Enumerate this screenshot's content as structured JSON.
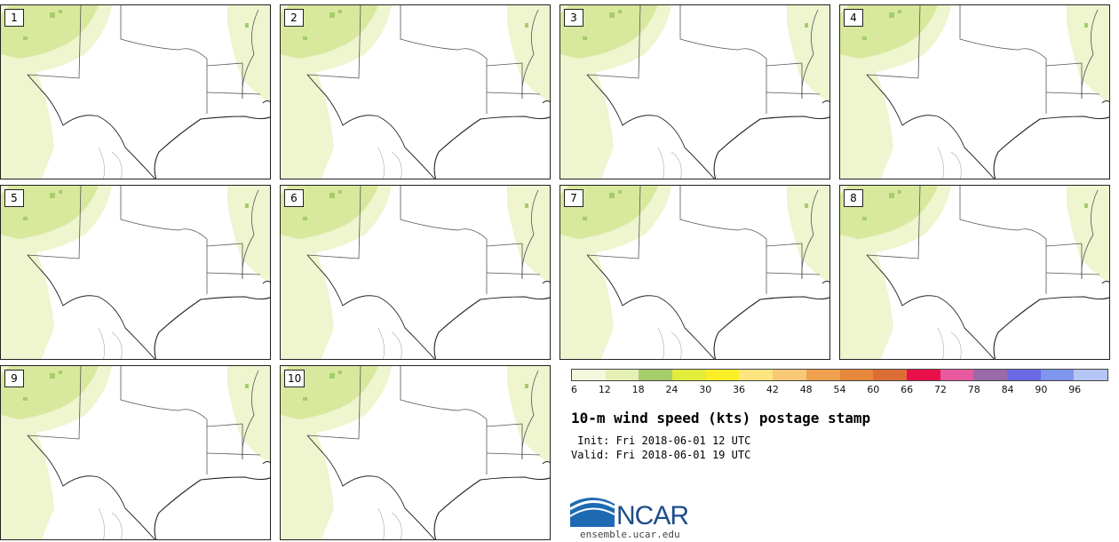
{
  "product": {
    "title": "10-m wind speed (kts) postage stamp",
    "init": " Init: Fri 2018-06-01 12 UTC",
    "valid": "Valid: Fri 2018-06-01 19 UTC",
    "logo_text": "NCAR",
    "site": "ensemble.ucar.edu"
  },
  "members": [
    "1",
    "2",
    "3",
    "4",
    "5",
    "6",
    "7",
    "8",
    "9",
    "10"
  ],
  "colorbar": {
    "ticks": [
      "6",
      "12",
      "18",
      "24",
      "30",
      "36",
      "42",
      "48",
      "54",
      "60",
      "66",
      "72",
      "78",
      "84",
      "90",
      "96"
    ],
    "colors": [
      "#f3f8dc",
      "#e3efb4",
      "#a7cc6a",
      "#e2ec3a",
      "#fcee26",
      "#fee57f",
      "#f8c877",
      "#eea04d",
      "#e7893a",
      "#dc6e35",
      "#e8104a",
      "#e85aa0",
      "#9a6aa8",
      "#6a6ae6",
      "#7f96ee",
      "#b5c6f6"
    ]
  },
  "colors": {
    "map_fill": "#eef5cf",
    "map_fill_strong": "#d8e89d",
    "map_patch": "#a7cc6a",
    "border": "#555",
    "coast": "#222"
  }
}
